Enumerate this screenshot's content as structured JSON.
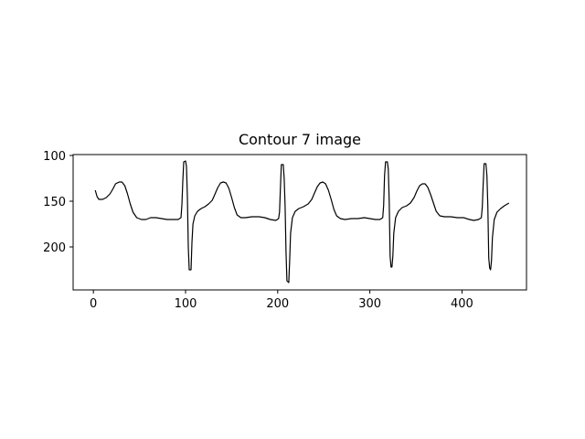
{
  "chart_data": {
    "type": "line",
    "title": "Contour 7 image",
    "xlabel": "",
    "ylabel": "",
    "xlim": [
      -22,
      470
    ],
    "ylim": [
      247,
      99
    ],
    "y_inverted": true,
    "grid": false,
    "line_color": "#000000",
    "xticks": [
      0,
      100,
      200,
      300,
      400
    ],
    "yticks": [
      100,
      150,
      200
    ],
    "series": [
      {
        "points": [
          [
            2,
            138
          ],
          [
            4,
            145
          ],
          [
            6,
            148
          ],
          [
            10,
            148
          ],
          [
            14,
            146
          ],
          [
            18,
            142
          ],
          [
            21,
            137
          ],
          [
            24,
            131
          ],
          [
            28,
            129
          ],
          [
            31,
            129
          ],
          [
            34,
            133
          ],
          [
            37,
            142
          ],
          [
            40,
            153
          ],
          [
            43,
            162
          ],
          [
            47,
            168
          ],
          [
            52,
            170
          ],
          [
            57,
            170
          ],
          [
            62,
            168
          ],
          [
            68,
            168
          ],
          [
            74,
            169
          ],
          [
            80,
            170
          ],
          [
            86,
            170
          ],
          [
            92,
            170
          ],
          [
            95,
            168
          ],
          [
            96,
            154
          ],
          [
            97,
            128
          ],
          [
            98,
            107
          ],
          [
            100,
            106
          ],
          [
            101,
            112
          ],
          [
            102,
            145
          ],
          [
            103,
            200
          ],
          [
            104,
            225
          ],
          [
            106,
            225
          ],
          [
            107,
            195
          ],
          [
            108,
            175
          ],
          [
            110,
            166
          ],
          [
            113,
            161
          ],
          [
            117,
            158
          ],
          [
            121,
            156
          ],
          [
            125,
            153
          ],
          [
            129,
            149
          ],
          [
            132,
            142
          ],
          [
            135,
            135
          ],
          [
            138,
            130
          ],
          [
            141,
            129
          ],
          [
            144,
            130
          ],
          [
            147,
            136
          ],
          [
            150,
            146
          ],
          [
            153,
            157
          ],
          [
            156,
            165
          ],
          [
            160,
            168
          ],
          [
            165,
            168
          ],
          [
            172,
            167
          ],
          [
            180,
            167
          ],
          [
            186,
            168
          ],
          [
            192,
            170
          ],
          [
            198,
            171
          ],
          [
            201,
            169
          ],
          [
            202,
            162
          ],
          [
            203,
            135
          ],
          [
            204,
            110
          ],
          [
            206,
            110
          ],
          [
            207,
            125
          ],
          [
            208,
            155
          ],
          [
            209,
            205
          ],
          [
            210,
            237
          ],
          [
            212,
            239
          ],
          [
            213,
            215
          ],
          [
            214,
            185
          ],
          [
            216,
            168
          ],
          [
            219,
            161
          ],
          [
            223,
            158
          ],
          [
            228,
            156
          ],
          [
            233,
            153
          ],
          [
            237,
            148
          ],
          [
            240,
            141
          ],
          [
            243,
            134
          ],
          [
            246,
            130
          ],
          [
            249,
            129
          ],
          [
            252,
            131
          ],
          [
            255,
            138
          ],
          [
            258,
            148
          ],
          [
            261,
            159
          ],
          [
            264,
            166
          ],
          [
            268,
            169
          ],
          [
            273,
            170
          ],
          [
            280,
            169
          ],
          [
            287,
            169
          ],
          [
            294,
            168
          ],
          [
            300,
            169
          ],
          [
            306,
            170
          ],
          [
            311,
            170
          ],
          [
            314,
            168
          ],
          [
            315,
            155
          ],
          [
            316,
            122
          ],
          [
            317,
            107
          ],
          [
            319,
            107
          ],
          [
            320,
            115
          ],
          [
            321,
            150
          ],
          [
            322,
            210
          ],
          [
            323,
            222
          ],
          [
            324,
            222
          ],
          [
            325,
            210
          ],
          [
            326,
            185
          ],
          [
            328,
            168
          ],
          [
            331,
            161
          ],
          [
            335,
            157
          ],
          [
            340,
            155
          ],
          [
            344,
            152
          ],
          [
            348,
            146
          ],
          [
            351,
            139
          ],
          [
            354,
            133
          ],
          [
            357,
            131
          ],
          [
            360,
            131
          ],
          [
            363,
            135
          ],
          [
            366,
            143
          ],
          [
            369,
            152
          ],
          [
            372,
            161
          ],
          [
            376,
            166
          ],
          [
            381,
            167
          ],
          [
            388,
            167
          ],
          [
            395,
            168
          ],
          [
            402,
            168
          ],
          [
            408,
            170
          ],
          [
            413,
            171
          ],
          [
            418,
            170
          ],
          [
            421,
            168
          ],
          [
            422,
            157
          ],
          [
            423,
            132
          ],
          [
            424,
            109
          ],
          [
            426,
            109
          ],
          [
            427,
            122
          ],
          [
            428,
            155
          ],
          [
            429,
            212
          ],
          [
            430,
            223
          ],
          [
            431,
            225
          ],
          [
            432,
            215
          ],
          [
            433,
            190
          ],
          [
            435,
            170
          ],
          [
            438,
            162
          ],
          [
            442,
            158
          ],
          [
            446,
            155
          ],
          [
            451,
            152
          ]
        ]
      }
    ]
  }
}
